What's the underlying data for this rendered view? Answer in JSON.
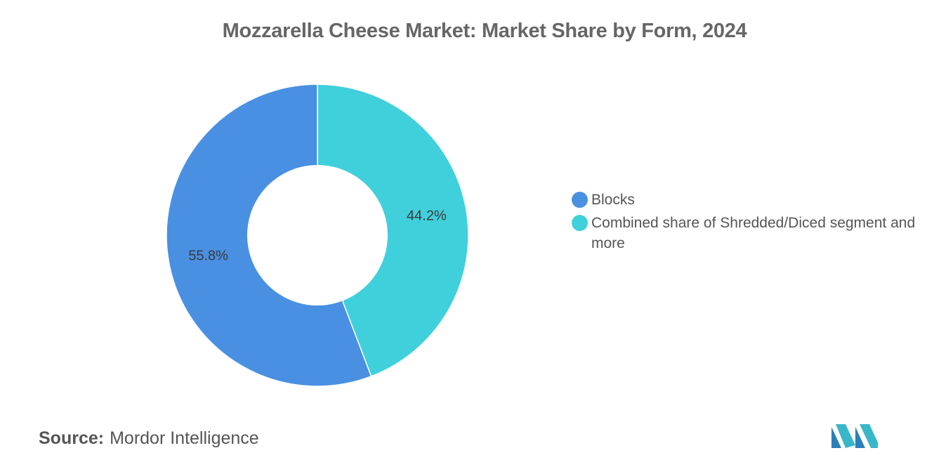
{
  "chart_data": {
    "type": "pie",
    "title": "Mozzarella Cheese Market: Market Share by Form, 2024",
    "series": [
      {
        "name": "Blocks",
        "value": 55.8,
        "label": "55.8%",
        "color": "#4a90e2"
      },
      {
        "name": "Combined share of Shredded/Diced segment and more",
        "value": 44.2,
        "label": "44.2%",
        "color": "#40d0dc"
      }
    ],
    "donut": true,
    "legend_position": "right"
  },
  "footer": {
    "source_key": "Source:",
    "source_value": "Mordor Intelligence"
  },
  "brand": {
    "logo_icon": "mordor-intelligence-logo-icon",
    "logo_colors": [
      "#2c7fb8",
      "#39b7c8"
    ]
  }
}
